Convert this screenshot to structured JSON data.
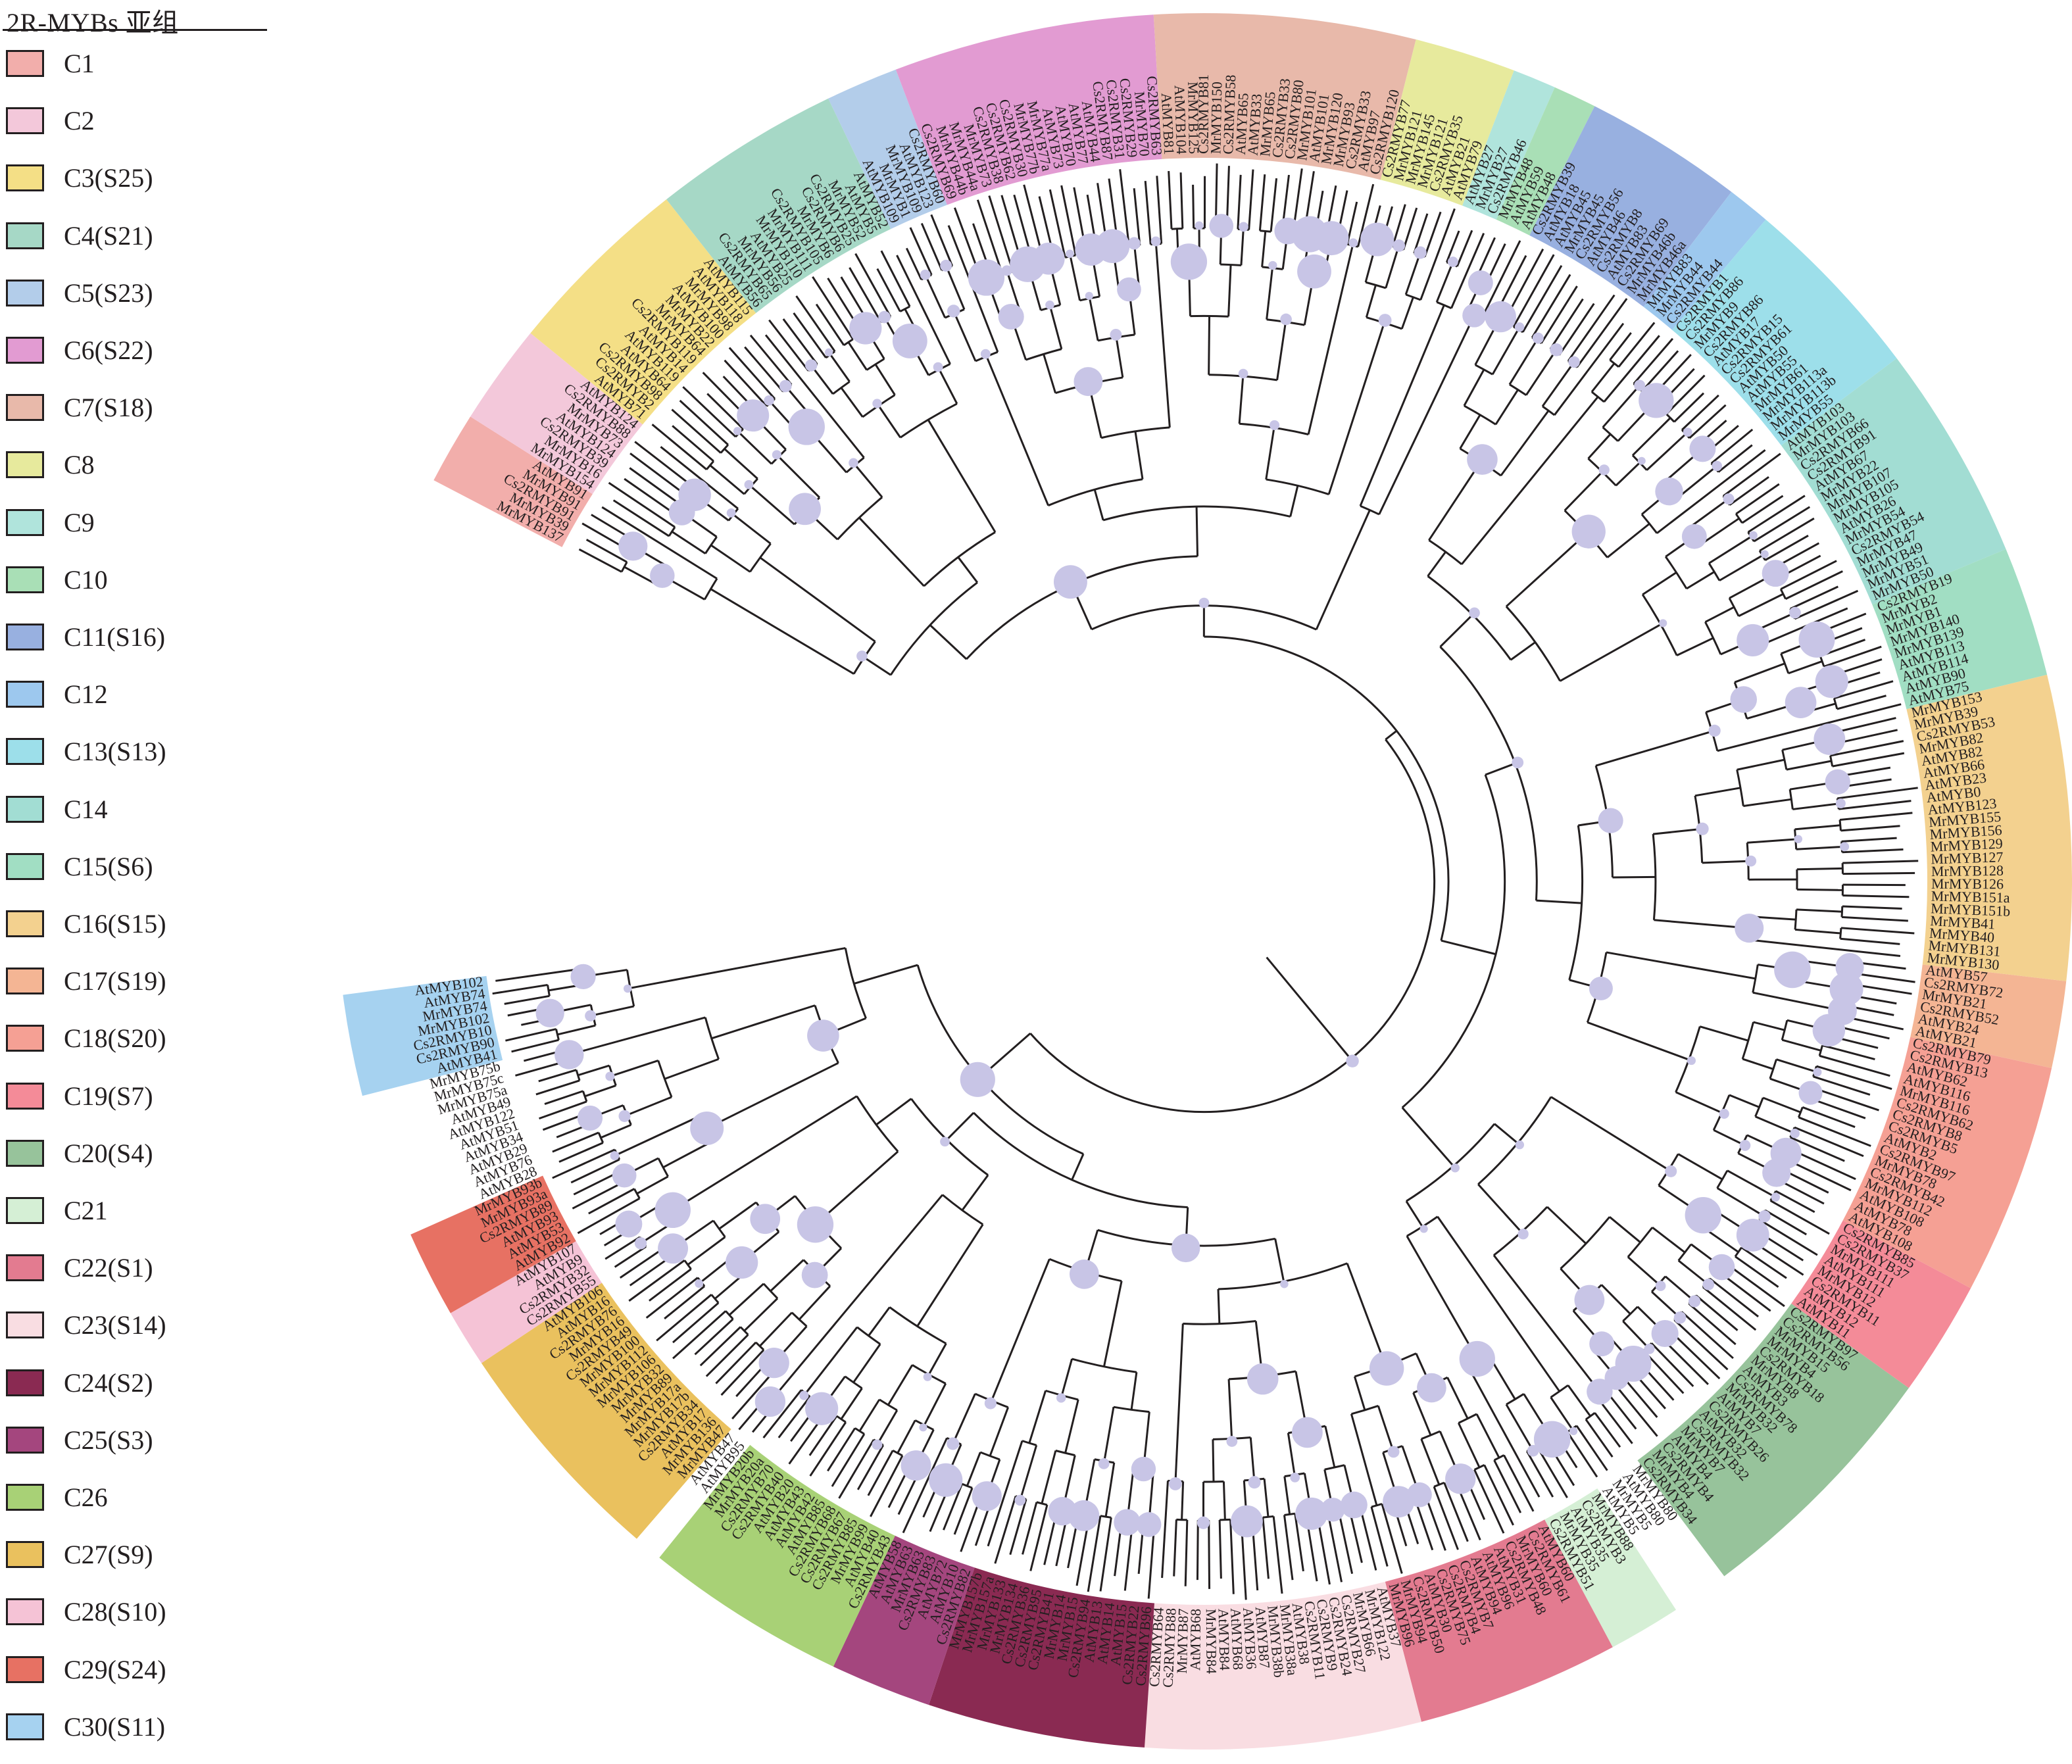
{
  "legend": {
    "title": "2R-MYBs 亚组",
    "items": [
      {
        "id": "C1",
        "label": "C1",
        "color": "#f2aeab"
      },
      {
        "id": "C2",
        "label": "C2",
        "color": "#f3c8da"
      },
      {
        "id": "C3",
        "label": "C3(S25)",
        "color": "#f4df86"
      },
      {
        "id": "C4",
        "label": "C4(S21)",
        "color": "#a6d8c6"
      },
      {
        "id": "C5",
        "label": "C5(S23)",
        "color": "#b3cdea"
      },
      {
        "id": "C6",
        "label": "C6(S22)",
        "color": "#e29bd2"
      },
      {
        "id": "C7",
        "label": "C7(S18)",
        "color": "#e8b9aa"
      },
      {
        "id": "C8",
        "label": "C8",
        "color": "#e7ea9d"
      },
      {
        "id": "C9",
        "label": "C9",
        "color": "#b0e4dc"
      },
      {
        "id": "C10",
        "label": "C10",
        "color": "#a9dfb6"
      },
      {
        "id": "C11",
        "label": "C11(S16)",
        "color": "#98b0e0"
      },
      {
        "id": "C12",
        "label": "C12",
        "color": "#9dc8ee"
      },
      {
        "id": "C13",
        "label": "C13(S13)",
        "color": "#9ddfea"
      },
      {
        "id": "C14",
        "label": "C14",
        "color": "#a2ddd3"
      },
      {
        "id": "C15",
        "label": "C15(S6)",
        "color": "#a1dec3"
      },
      {
        "id": "C16",
        "label": "C16(S15)",
        "color": "#f3d18f"
      },
      {
        "id": "C17",
        "label": "C17(S19)",
        "color": "#f4b594"
      },
      {
        "id": "C18",
        "label": "C18(S20)",
        "color": "#f5a094"
      },
      {
        "id": "C19",
        "label": "C19(S7)",
        "color": "#f48b98"
      },
      {
        "id": "C20",
        "label": "C20(S4)",
        "color": "#97c39b"
      },
      {
        "id": "C21",
        "label": "C21",
        "color": "#d5efd5"
      },
      {
        "id": "C22",
        "label": "C22(S1)",
        "color": "#e37b90"
      },
      {
        "id": "C23",
        "label": "C23(S14)",
        "color": "#f9dde2"
      },
      {
        "id": "C24",
        "label": "C24(S2)",
        "color": "#8a2a52"
      },
      {
        "id": "C25",
        "label": "C25(S3)",
        "color": "#a4467e"
      },
      {
        "id": "C26",
        "label": "C26",
        "color": "#a8d176"
      },
      {
        "id": "C27",
        "label": "C27(S9)",
        "color": "#eac15e"
      },
      {
        "id": "C28",
        "label": "C28(S10)",
        "color": "#f5c3d6"
      },
      {
        "id": "C29",
        "label": "C29(S24)",
        "color": "#e77163"
      },
      {
        "id": "C30",
        "label": "C30(S11)",
        "color": "#a6d2f0"
      }
    ]
  },
  "tree": {
    "bootstrap_color": "#c8c5e6",
    "branch_color": "#231f20",
    "clades": [
      {
        "clade": "C1",
        "leaves": [
          "MrMYB137",
          "MrMYB39",
          "Cs2RMYB91",
          "MrMYB91",
          "AtMYB91"
        ]
      },
      {
        "clade": "C2",
        "leaves": [
          "MrMYB154",
          "MrMYB16",
          "Cs2RMYB39",
          "AtMYB124",
          "MrMYB73",
          "Cs2RMYB88",
          "AtMYB124"
        ]
      },
      {
        "clade": "C3",
        "leaves": [
          "AtMYB71",
          "Cs2RMYB2",
          "Cs2RMYB98",
          "AtMYB64",
          "AtMYB119",
          "AtMYB14",
          "Cs2RMYB119",
          "MrMYB64",
          "MrMYB22",
          "AtMYB100",
          "MrMYB98",
          "AtMYB118",
          "AtMYB115"
        ]
      },
      {
        "clade": "C4",
        "leaves": [
          "AtMYB56",
          "Cs2RMYB65",
          "MrMYB56",
          "AtMYB25",
          "MrMYB110",
          "MrMYB111",
          "Cs2RMYB105",
          "MrMYB6",
          "Cs2RMYB6",
          "Cs2RMYB25",
          "MrMYB52",
          "AtMYB5",
          "AtMYB52"
        ]
      },
      {
        "clade": "C5",
        "leaves": [
          "AtMYB109",
          "MrMYB1",
          "MrMYB109",
          "AtMYB123",
          "Cs2RMYB60"
        ]
      },
      {
        "clade": "C6",
        "leaves": [
          "Cs2RMYB69",
          "MrMYB44b",
          "MrMYB44a",
          "MrMYB73",
          "Cs2RMYB38",
          "Cs2RMYB62",
          "Cs2RMYB30",
          "MrMYB77b",
          "MrMYB77a",
          "AtMYB73",
          "AtMYB70",
          "AtMYB77",
          "AtMYB44",
          "Cs2RMYB87",
          "Cs2RMYB31",
          "Cs2RMYB29",
          "MrMYB70",
          "Cs2RMYB63"
        ]
      },
      {
        "clade": "C7",
        "leaves": [
          "AtMYB81",
          "AtMYB104",
          "MrMYB125",
          "Cs2RMYB81",
          "MrMYB150",
          "Cs2RMYB58",
          "AtMYB65",
          "AtMYB33",
          "MrMYB65",
          "Cs2RMYB33",
          "Cs2RMYB80",
          "MrMYB101",
          "AtMYB101",
          "MrMYB120",
          "MrMYB93",
          "Cs2RMYB33",
          "AtMYB97",
          "Cs2RMYB120"
        ]
      },
      {
        "clade": "C8",
        "leaves": [
          "Cs2RMYB77",
          "MrMYB121",
          "MrMYB145",
          "MrMYB121",
          "Cs2RMYB35",
          "AtMYB21",
          "AtMYB79"
        ]
      },
      {
        "clade": "C9",
        "leaves": [
          "AtMYB27",
          "MrMYB27",
          "Cs2RMYB46"
        ]
      },
      {
        "clade": "C10",
        "leaves": [
          "MrMYB48",
          "AtMYB59",
          "AtMYB48"
        ]
      },
      {
        "clade": "C11",
        "leaves": [
          "Cs2RMYB39",
          "AtMYB18",
          "AtMYB45",
          "MrMYB45",
          "Cs2RMYB56",
          "AtMYB46",
          "Cs2RMYB8",
          "AtMYB83",
          "Cs2RMYB69",
          "MrMYB46b",
          "MrMYB46a"
        ]
      },
      {
        "clade": "C12",
        "leaves": [
          "MrMYB83",
          "MrMYB44",
          "Cs2RMYB44"
        ]
      },
      {
        "clade": "C13",
        "leaves": [
          "Cs2RMYB1",
          "Cs2RMYB86",
          "MrMYB9",
          "Cs2RMYB86",
          "AtMYB17",
          "Cs2RMYB15",
          "Cs2RMYB61",
          "AtMYB50",
          "AtMYB55",
          "MrMYB61",
          "MrMYB113a",
          "MrMYB113b",
          "MrMYB55"
        ]
      },
      {
        "clade": "C14",
        "leaves": [
          "AtMYB103",
          "MrMYB103",
          "Cs2RMYB66",
          "Cs2RMYB91",
          "AtMYB67",
          "MrMYB22",
          "MrMYB107",
          "MrMYB105",
          "AtMYB26",
          "MrMYB54",
          "Cs2RMYB54",
          "MrMYB47",
          "MrMYB49",
          "MrMYB51",
          "MrMYB50"
        ]
      },
      {
        "clade": "C15",
        "leaves": [
          "Cs2RMYB19",
          "MrMYB2",
          "MrMYB1",
          "MrMYB140",
          "MrMYB139",
          "AtMYB113",
          "AtMYB114",
          "AtMYB90",
          "AtMYB75"
        ]
      },
      {
        "clade": "C16",
        "leaves": [
          "MrMYB153",
          "MrMYB39",
          "Cs2RMYB53",
          "MrMYB82",
          "AtMYB82",
          "AtMYB66",
          "AtMYB23",
          "AtMYB0",
          "AtMYB123",
          "MrMYB155",
          "MrMYB156",
          "MrMYB129",
          "MrMYB127",
          "MrMYB128",
          "MrMYB126",
          "MrMYB151a",
          "MrMYB151b",
          "MrMYB41",
          "MrMYB40",
          "MrMYB131",
          "MrMYB130"
        ]
      },
      {
        "clade": "C17",
        "leaves": [
          "AtMYB57",
          "Cs2RMYB72",
          "MrMYB21",
          "Cs2RMYB52",
          "AtMYB24",
          "AtMYB21"
        ]
      },
      {
        "clade": "C18",
        "leaves": [
          "Cs2RMYB79",
          "Cs2RMYB13",
          "AtMYB62",
          "AtMYB116",
          "MrMYB116",
          "Cs2RMYB62",
          "Cs2RMYB8",
          "Cs2RMYB5",
          "AtMYB2",
          "Cs2RMYB97",
          "MrMYB78",
          "Cs2RMYB42",
          "MrMYB112",
          "AtMYB108",
          "AtMYB78",
          "AtMYB108"
        ]
      },
      {
        "clade": "C19",
        "leaves": [
          "Cs2RMYB85",
          "Cs2RMYB37",
          "MrMYB111",
          "AtMYB111",
          "MrMYB12",
          "Cs2RMYB11",
          "AtMYB12",
          "AtMYB11"
        ]
      },
      {
        "clade": "C20",
        "leaves": [
          "Cs2RMYB97",
          "Cs2RMYB56",
          "MrMYB15",
          "MrMYB4",
          "Cs2RMYB18",
          "MrMYB8",
          "AtMYB3",
          "Cs2RMYB78",
          "MrMYB32",
          "AtMYB7",
          "Cs2RMYB26",
          "AtMYB32",
          "Cs2RMYB32",
          "MrMYB7",
          "AtMYB4",
          "Cs2RMYB4",
          "MrMYB4",
          "Cs2RMYB34"
        ]
      },
      {
        "clade": "",
        "leaves": [
          "MrMYB80",
          "AtMYB80",
          "MrMYB5",
          "AtMYB5"
        ]
      },
      {
        "clade": "C21",
        "leaves": [
          "MrMYB88",
          "Cs2RMYB3",
          "AtMYB35",
          "MrMYB35",
          "Cs2RMYB51"
        ]
      },
      {
        "clade": "C22",
        "leaves": [
          "AtMYB60",
          "Cs2RMYB61",
          "MrMYB60",
          "Cs2RMYB48",
          "AtMYB31",
          "AtMYB96",
          "AtMYB94",
          "Cs2RMYB7",
          "Cs2RMYB4",
          "Cs2RMYB75",
          "AtMYB30",
          "Cs2RMYB50",
          "MrMYB94",
          "MrMYB96"
        ]
      },
      {
        "clade": "C23",
        "leaves": [
          "AtMYB37",
          "MrMYB122",
          "MrMYB66",
          "Cs2RMYB27",
          "Cs2RMYB24",
          "Cs2RMYB9",
          "Cs2RMYB11",
          "AtMYB38",
          "MrMYB38a",
          "MrMYB38b",
          "AtMYB87",
          "AtMYB36",
          "AtMYB68",
          "AtMYB84",
          "MrMYB84",
          "AtMYB68",
          "MrMYB87",
          "Cs2RMYB88",
          "Cs2RMYB64"
        ]
      },
      {
        "clade": "C24",
        "leaves": [
          "Cs2RMYB96",
          "Cs2RMYB22",
          "AtMYB15",
          "AtMYB14",
          "AtMYB13",
          "Cs2RMYB94",
          "MrMYB15",
          "MrMYB14",
          "Cs2RMYB41",
          "Cs2RMYB95",
          "Cs2RMYB36",
          "MrMYB134",
          "MrMYB133",
          "MrMYB157a",
          "MrMYB157b"
        ]
      },
      {
        "clade": "C25",
        "leaves": [
          "Cs2RMYB82",
          "AtMYB10",
          "AtMYB72",
          "Cs2RMYB83",
          "MrMYB63",
          "AtMYB63",
          "AtMYB58"
        ]
      },
      {
        "clade": "C26",
        "leaves": [
          "Cs2RMYB43",
          "AtMYB40",
          "MrMYB99",
          "Cs2RMYB85",
          "Cs2RMYB67",
          "Cs2RMYB68",
          "AtMYB85",
          "AtMYB42",
          "AtMYB43",
          "AtMYB20",
          "Cs2RMYB40",
          "Cs2RMYB70",
          "MrMYB20a",
          "MrMYB20b"
        ]
      },
      {
        "clade": "",
        "leaves": [
          "AtMYB95",
          "AtMYB47"
        ]
      },
      {
        "clade": "C27",
        "leaves": [
          "MrMYB47",
          "MrMYB136",
          "AtMYB17",
          "Cs2RMYB34",
          "MrMYB17b",
          "MrMYB17a",
          "MrMYB89",
          "MrMYB32",
          "MrMYB106",
          "MrMYB112",
          "MrMYB100",
          "Cs2RMYB49",
          "MrMYB16",
          "Cs2RMYB76",
          "AtMYB16",
          "AtMYB106"
        ]
      },
      {
        "clade": "C28",
        "leaves": [
          "Cs2RMYB55",
          "Cs2RMYB32",
          "AtMYB9",
          "AtMYB107"
        ]
      },
      {
        "clade": "C29",
        "leaves": [
          "AtMYB92",
          "AtMYB53",
          "AtMYB93",
          "Cs2RMYB89",
          "MrMYB93a",
          "MrMYB93b"
        ]
      },
      {
        "clade": "",
        "leaves": [
          "AtMYB28",
          "AtMYB76",
          "AtMYB29",
          "AtMYB34",
          "AtMYB51",
          "AtMYB122",
          "AtMYB49",
          "MrMYB75a",
          "MrMYB75c",
          "MrMYB75b"
        ]
      },
      {
        "clade": "C30",
        "leaves": [
          "AtMYB41",
          "Cs2RMYB90",
          "Cs2RMYB10",
          "MrMYB102",
          "MrMYB74",
          "AtMYB74",
          "AtMYB102"
        ]
      }
    ]
  }
}
